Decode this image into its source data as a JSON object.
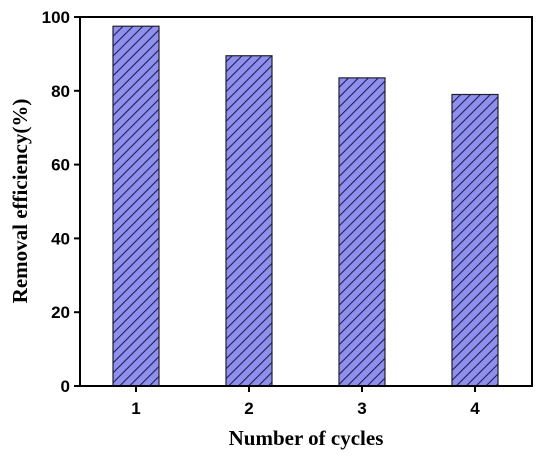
{
  "chart_data": {
    "type": "bar",
    "categories": [
      "1",
      "2",
      "3",
      "4"
    ],
    "values": [
      97.5,
      89.5,
      83.5,
      79
    ],
    "xlabel": "Number of cycles",
    "ylabel": "Removal efficiency(%)",
    "ylim": [
      0,
      100
    ],
    "yticks": [
      0,
      20,
      40,
      60,
      80,
      100
    ],
    "grid": false,
    "legend": "none",
    "bar_fill": "#8f8ff0",
    "bar_hatch": "#20204a",
    "bar_edge": "#202030"
  }
}
